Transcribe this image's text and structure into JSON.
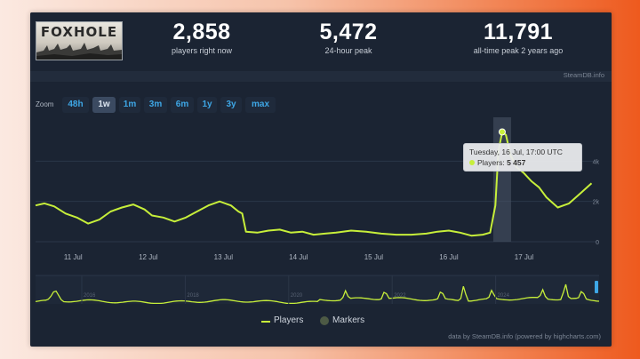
{
  "logo": {
    "text": "FOXHOLE"
  },
  "stats": [
    {
      "value": "2,858",
      "label": "players right now"
    },
    {
      "value": "5,472",
      "label": "24-hour peak"
    },
    {
      "value": "11,791",
      "label": "all-time peak 2 years ago"
    }
  ],
  "source": "SteamDB.info",
  "zoom": {
    "label": "Zoom",
    "options": [
      "48h",
      "1w",
      "1m",
      "3m",
      "6m",
      "1y",
      "3y",
      "max"
    ],
    "active": "1w"
  },
  "tooltip": {
    "date": "Tuesday, 16 Jul, 17:00 UTC",
    "series": "Players:",
    "value": "5 457"
  },
  "legend": [
    {
      "name": "Players",
      "symbol": "line"
    },
    {
      "name": "Markers",
      "symbol": "dot"
    }
  ],
  "credit": "data by SteamDB.info (powered by highcharts.com)",
  "colors": {
    "line": "#c7ef3a",
    "panel": "#1b2433",
    "accent": "#3ea7e6"
  },
  "chart_data": {
    "type": "line",
    "ylim": [
      0,
      6000
    ],
    "yticks": [
      {
        "value": 0,
        "label": "0"
      },
      {
        "value": 2000,
        "label": "2k"
      },
      {
        "value": 4000,
        "label": "4k"
      }
    ],
    "xlim": [
      10.5,
      18.0
    ],
    "xticks": [
      {
        "value": 11,
        "label": "11 Jul"
      },
      {
        "value": 12,
        "label": "12 Jul"
      },
      {
        "value": 13,
        "label": "13 Jul"
      },
      {
        "value": 14,
        "label": "14 Jul"
      },
      {
        "value": 15,
        "label": "15 Jul"
      },
      {
        "value": 16,
        "label": "16 Jul"
      },
      {
        "value": 17,
        "label": "17 Jul"
      }
    ],
    "highlight_x": 16.71,
    "series": [
      {
        "name": "Players",
        "x": [
          10.5,
          10.62,
          10.75,
          10.9,
          11.05,
          11.2,
          11.35,
          11.5,
          11.65,
          11.8,
          11.95,
          12.05,
          12.2,
          12.35,
          12.5,
          12.65,
          12.8,
          12.95,
          13.1,
          13.2,
          13.25,
          13.3,
          13.45,
          13.6,
          13.75,
          13.9,
          14.05,
          14.2,
          14.35,
          14.5,
          14.7,
          14.9,
          15.1,
          15.3,
          15.5,
          15.7,
          15.85,
          16.0,
          16.15,
          16.3,
          16.45,
          16.55,
          16.62,
          16.66,
          16.71,
          16.76,
          16.82,
          16.9,
          17.0,
          17.1,
          17.2,
          17.3,
          17.45,
          17.6,
          17.75,
          17.9
        ],
        "y": [
          1800,
          1900,
          1750,
          1400,
          1200,
          900,
          1100,
          1500,
          1700,
          1850,
          1600,
          1300,
          1200,
          1000,
          1200,
          1500,
          1800,
          2000,
          1800,
          1500,
          1400,
          500,
          450,
          550,
          600,
          450,
          500,
          350,
          400,
          450,
          550,
          500,
          400,
          350,
          350,
          400,
          500,
          550,
          450,
          300,
          350,
          450,
          1800,
          4500,
          5450,
          5300,
          4300,
          3700,
          3400,
          3000,
          2700,
          2200,
          1700,
          1900,
          2400,
          2900
        ]
      }
    ],
    "navigator": {
      "labels": [
        "2016",
        "2018",
        "2020",
        "2022",
        "2024"
      ]
    }
  }
}
